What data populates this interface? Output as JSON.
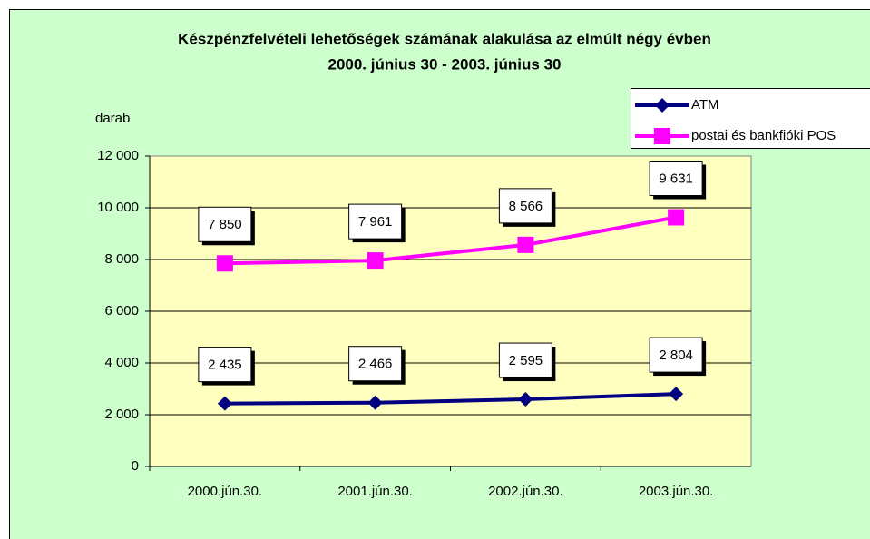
{
  "chart_data": {
    "type": "line",
    "title": "Készpénzfelvételi lehetőségek számának alakulása az elmúlt négy évben",
    "subtitle": "2000. június 30 - 2003. június 30",
    "y_label": "darab",
    "categories": [
      "2000.jún.30.",
      "2001.jún.30.",
      "2002.jún.30.",
      "2003.jún.30."
    ],
    "series": [
      {
        "name": "ATM",
        "color": "#000080",
        "marker": "diamond",
        "values": [
          2435,
          2466,
          2595,
          2804
        ],
        "value_labels": [
          "2 435",
          "2 466",
          "2 595",
          "2 804"
        ]
      },
      {
        "name": "postai és bankfióki POS",
        "color": "#ff00ff",
        "marker": "square",
        "values": [
          7850,
          7961,
          8566,
          9631
        ],
        "value_labels": [
          "7 850",
          "7 961",
          "8 566",
          "9 631"
        ]
      }
    ],
    "ylim": [
      0,
      12000
    ],
    "yticks": [
      0,
      {
        "value": 2000,
        "label": "2 000"
      },
      {
        "value": 4000,
        "label": "4 000"
      },
      {
        "value": 6000,
        "label": "6 000"
      },
      {
        "value": 8000,
        "label": "8 000"
      },
      {
        "value": 10000,
        "label": "10 000"
      },
      {
        "value": 12000,
        "label": "12 000"
      }
    ],
    "grid": true,
    "legend": "top-right"
  }
}
